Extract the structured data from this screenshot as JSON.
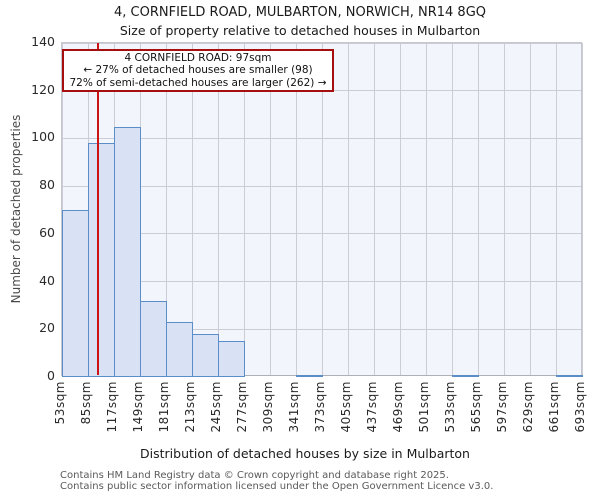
{
  "title": "4, CORNFIELD ROAD, MULBARTON, NORWICH, NR14 8GQ",
  "subtitle": "Size of property relative to detached houses in Mulbarton",
  "annotation": {
    "line1": "4 CORNFIELD ROAD: 97sqm",
    "line2": "← 27% of detached houses are smaller (98)",
    "line3": "72% of semi-detached houses are larger (262) →"
  },
  "chart_data": {
    "type": "bar",
    "title": "4, CORNFIELD ROAD, MULBARTON, NORWICH, NR14 8GQ",
    "subtitle": "Size of property relative to detached houses in Mulbarton",
    "xlabel": "Distribution of detached houses by size in Mulbarton",
    "ylabel": "Number of detached properties",
    "bin_start_sqm": 53,
    "bin_width_sqm": 32,
    "categories": [
      "53sqm",
      "85sqm",
      "117sqm",
      "149sqm",
      "181sqm",
      "213sqm",
      "245sqm",
      "277sqm",
      "309sqm",
      "341sqm",
      "373sqm",
      "405sqm",
      "437sqm",
      "469sqm",
      "501sqm",
      "533sqm",
      "565sqm",
      "597sqm",
      "629sqm",
      "661sqm",
      "693sqm"
    ],
    "values": [
      70,
      98,
      105,
      32,
      23,
      18,
      15,
      0,
      0,
      1,
      0,
      0,
      0,
      0,
      0,
      1,
      0,
      0,
      0,
      1
    ],
    "ylim": [
      0,
      140
    ],
    "yticks": [
      0,
      20,
      40,
      60,
      80,
      100,
      120,
      140
    ],
    "grid": true,
    "legend": "none",
    "marker_value_sqm": 97,
    "colors": {
      "bar_fill": "#d8e2f4",
      "bar_edge": "#5b8dc9",
      "marker_line": "#cc1414",
      "annotation_border": "#a50f0f",
      "plot_background": "#f2f5fc",
      "gridline": "#cacdd6"
    }
  },
  "footer": {
    "line1": "Contains HM Land Registry data © Crown copyright and database right 2025.",
    "line2": "Contains public sector information licensed under the Open Government Licence v3.0."
  }
}
